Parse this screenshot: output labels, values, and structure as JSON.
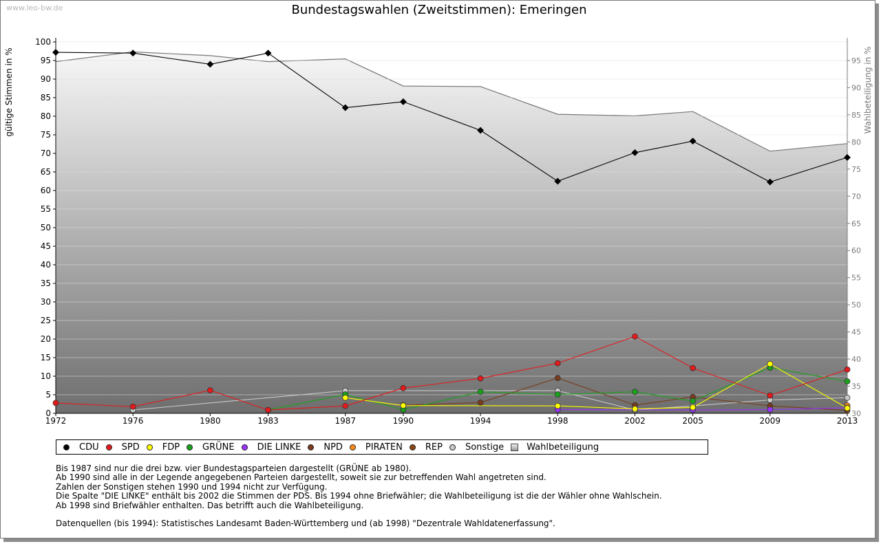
{
  "watermark": "www.leo-bw.de",
  "chart_data": {
    "type": "line",
    "title": "Bundestagswahlen (Zweitstimmen): Emeringen",
    "ylabel": "gültige Stimmen in %",
    "y2label": "Wahlbeteiligung in %",
    "ylim": [
      0,
      100
    ],
    "y2lim": [
      30,
      95
    ],
    "x_ticks": [
      "1972",
      "1976",
      "1980",
      "1983",
      "1987",
      "1990",
      "1994",
      "1998",
      "2002",
      "2005",
      "2009",
      "2013"
    ],
    "y_ticks": [
      "0",
      "5",
      "10",
      "15",
      "20",
      "25",
      "30",
      "35",
      "40",
      "45",
      "50",
      "55",
      "60",
      "65",
      "70",
      "75",
      "80",
      "85",
      "90",
      "95",
      "100"
    ],
    "y2_ticks": [
      "30",
      "35",
      "40",
      "45",
      "50",
      "55",
      "60",
      "65",
      "70",
      "75",
      "80",
      "85",
      "90",
      "95"
    ],
    "x": [
      1972,
      1976,
      1980,
      1983,
      1987,
      1990,
      1994,
      1998,
      2002,
      2005,
      2009,
      2013
    ],
    "series": [
      {
        "name": "CDU",
        "color": "#000000",
        "values": [
          97.2,
          97.0,
          94.0,
          97.0,
          82.3,
          83.9,
          76.2,
          62.5,
          70.2,
          73.3,
          62.3,
          68.9
        ]
      },
      {
        "name": "SPD",
        "color": "#e41a1c",
        "values": [
          2.8,
          1.8,
          6.2,
          0.9,
          2.0,
          6.8,
          9.4,
          13.5,
          20.7,
          12.2,
          4.8,
          11.8
        ]
      },
      {
        "name": "FDP",
        "color": "#ffff00",
        "values": [
          null,
          null,
          null,
          null,
          4.2,
          2.1,
          null,
          2.0,
          1.2,
          1.6,
          13.3,
          1.4
        ]
      },
      {
        "name": "GRÜNE",
        "color": "#1aa31a",
        "values": [
          null,
          null,
          null,
          0.9,
          5.1,
          1.0,
          5.8,
          5.1,
          5.8,
          3.3,
          12.3,
          8.6
        ]
      },
      {
        "name": "DIE LINKE",
        "color": "#9933ff",
        "values": [
          null,
          null,
          null,
          null,
          null,
          null,
          null,
          1.0,
          null,
          0.9,
          1.0,
          1.5
        ]
      },
      {
        "name": "NPD",
        "color": "#7a3b1d",
        "values": [
          null,
          null,
          null,
          null,
          null,
          2.2,
          2.9,
          9.5,
          2.2,
          4.4,
          2.0,
          0.8
        ]
      },
      {
        "name": "PIRATEN",
        "color": "#ff8c1a",
        "values": [
          null,
          null,
          null,
          null,
          null,
          null,
          null,
          null,
          null,
          null,
          null,
          2.1
        ]
      },
      {
        "name": "REP",
        "color": "#8b4513",
        "values": [
          null,
          null,
          null,
          null,
          null,
          null,
          null,
          null,
          null,
          null,
          null,
          null
        ]
      },
      {
        "name": "Sonstige",
        "color": "#c8c8c8",
        "values": [
          null,
          0.9,
          null,
          null,
          6.1,
          null,
          null,
          6.1,
          0.9,
          2.0,
          3.6,
          4.2
        ]
      }
    ],
    "turnout": {
      "name": "Wahlbeteiligung",
      "values": [
        94.8,
        96.6,
        95.9,
        94.8,
        95.3,
        90.3,
        90.2,
        85.1,
        84.8,
        85.6,
        78.3,
        79.7
      ]
    },
    "legend": [
      "CDU",
      "SPD",
      "FDP",
      "GRÜNE",
      "DIE LINKE",
      "NPD",
      "PIRATEN",
      "REP",
      "Sonstige",
      "Wahlbeteiligung"
    ]
  },
  "notes": [
    "Bis 1987 sind nur die drei bzw. vier Bundestagsparteien dargestellt (GRÜNE ab 1980).",
    "Ab 1990 sind alle in der Legende angegebenen Parteien dargestellt, soweit sie zur betreffenden Wahl angetreten sind.",
    "Zahlen der Sonstigen stehen 1990 und 1994 nicht zur Verfügung.",
    "Die Spalte \"DIE LINKE\" enthält bis 2002 die Stimmen der PDS. Bis 1994 ohne Briefwähler; die Wahlbeteiligung ist die der Wähler ohne Wahlschein.",
    "Ab 1998 sind Briefwähler enthalten. Das betrifft auch die Wahlbeteiligung."
  ],
  "sources": "Datenquellen (bis 1994): Statistisches Landesamt Baden-Württemberg und (ab 1998) \"Dezentrale Wahldatenerfassung\"."
}
